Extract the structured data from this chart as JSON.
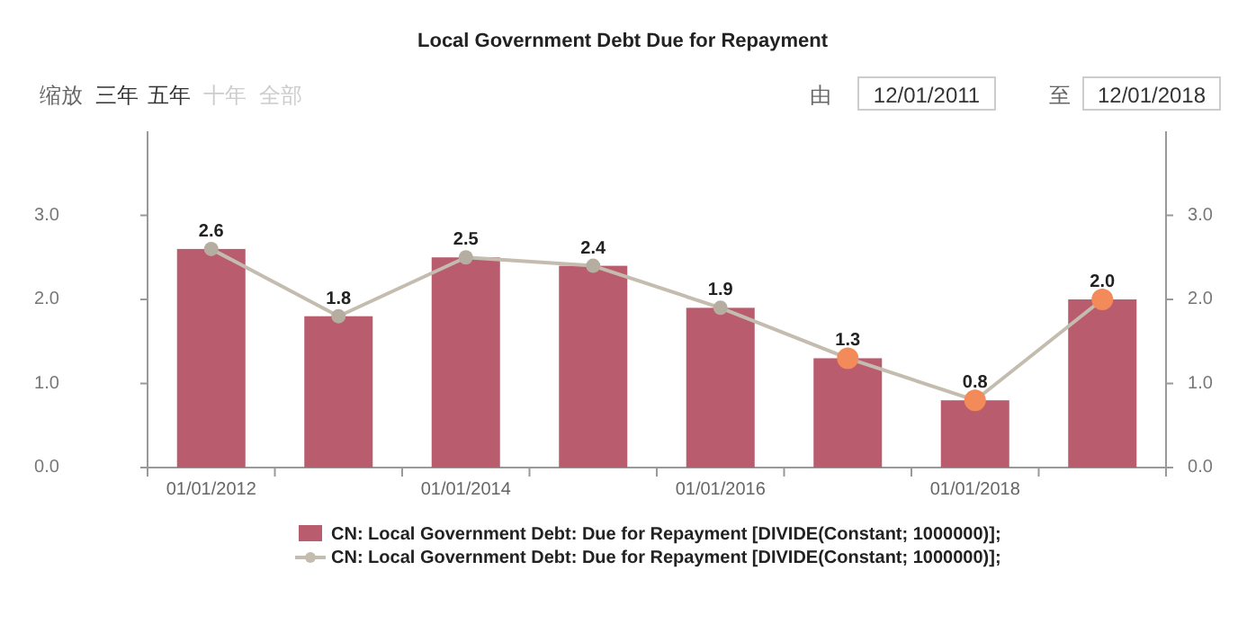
{
  "chart_data": {
    "type": "bar",
    "title": "Local Government Debt Due for Repayment",
    "categories": [
      "01/01/2012",
      null,
      "01/01/2014",
      null,
      "01/01/2016",
      null,
      "01/01/2018",
      null
    ],
    "series": [
      {
        "name": "CN: Local Government Debt: Due for Repayment [DIVIDE(Constant; 1000000)];",
        "color": "#b85c6e",
        "values": [
          2.6,
          1.8,
          2.5,
          2.4,
          1.9,
          1.3,
          0.8,
          2.0
        ]
      },
      {
        "name": "CN: Local Government Debt: Due for Repayment [DIVIDE(Constant; 1000000)];",
        "type": "line",
        "axis": "y2",
        "color": "#c4bcae",
        "colors": [
          "#b5ad9f",
          "#b5ad9f",
          "#b5ad9f",
          "#b5ad9f",
          "#b5ad9f",
          "#f28a5a",
          "#f28a5a",
          "#f28a5a"
        ],
        "values": [
          2.6,
          1.8,
          2.5,
          2.4,
          1.9,
          1.3,
          0.8,
          2.0
        ],
        "value_labels": [
          "2.6",
          "1.8",
          "2.5",
          "2.4",
          "1.9",
          "1.3",
          "0.8",
          "2.0"
        ]
      }
    ],
    "ylim": [
      0,
      4
    ],
    "yticks": [
      {
        "value": 0,
        "label": "0.0"
      },
      {
        "value": 1,
        "label": "1.0"
      },
      {
        "value": 2,
        "label": "2.0"
      },
      {
        "value": 3,
        "label": "3.0"
      }
    ],
    "y2lim": [
      0,
      4
    ],
    "y2ticks": [
      {
        "value": 0,
        "label": "0.0"
      },
      {
        "value": 1,
        "label": "1.0"
      },
      {
        "value": 2,
        "label": "2.0"
      },
      {
        "value": 3,
        "label": "3.0"
      }
    ],
    "marker": "circle",
    "legend": "bottom",
    "grid": false,
    "annotations": [
      "缩放",
      "三年",
      "五年",
      "十年",
      "全部",
      "由",
      "12/01/2011",
      "至",
      "12/01/2018"
    ]
  }
}
